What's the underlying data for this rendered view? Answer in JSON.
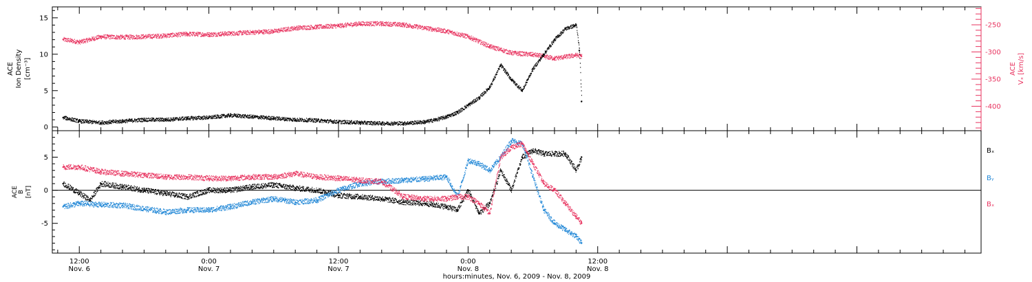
{
  "colors": {
    "axis": "#000000",
    "black": "#000000",
    "pink": "#e8335f",
    "blue": "#1f86d6"
  },
  "x_axis": {
    "title": "hours:minutes, Nov. 6, 2009 - Nov. 8, 2009",
    "range_hours": [
      -2.5,
      83.5
    ],
    "major_ticks": [
      {
        "h": 0,
        "time": "12:00",
        "date": "Nov. 6"
      },
      {
        "h": 12,
        "time": "0:00",
        "date": "Nov. 7"
      },
      {
        "h": 24,
        "time": "12:00",
        "date": "Nov. 7"
      },
      {
        "h": 36,
        "time": "0:00",
        "date": "Nov. 8"
      },
      {
        "h": 48,
        "time": "12:00",
        "date": "Nov. 8"
      }
    ],
    "minor_step_hours": 2
  },
  "panel_top": {
    "left_axis": {
      "label_lines": [
        "ACE",
        "Ion Density",
        "[cm⁻³]"
      ],
      "range": [
        -0.5,
        16.5
      ],
      "ticks": [
        0,
        5,
        10,
        15
      ]
    },
    "right_axis": {
      "label_lines": [
        "ACE",
        "Vₓ [km/s]"
      ],
      "range": [
        -445,
        -217
      ],
      "ticks": [
        -250,
        -300,
        -350,
        -400
      ]
    }
  },
  "panel_bottom": {
    "left_axis": {
      "label_lines": [
        "ACE",
        "B",
        "[nT]"
      ],
      "range": [
        -9.5,
        9
      ],
      "ticks": [
        5,
        0,
        -5
      ]
    },
    "legend": [
      "Bₓ",
      "Bᵧ",
      "Bₓ"
    ],
    "legend_labels": [
      "Bx",
      "By",
      "Bz"
    ]
  },
  "chart_data": [
    {
      "type": "scatter",
      "title": "",
      "xlabel": "hours:minutes, Nov. 6, 2009 - Nov. 8, 2009",
      "ylabel": "ACE Ion Density [cm-3]",
      "y2label": "ACE Vx [km/s]",
      "ylim": [
        -0.5,
        16.5
      ],
      "y2lim": [
        -445,
        -217
      ],
      "series": [
        {
          "name": "Ion Density",
          "axis": "left",
          "color": "#000000",
          "x": [
            -1.5,
            0,
            2,
            4,
            6,
            8,
            10,
            12,
            14,
            16,
            18,
            20,
            22,
            24,
            26,
            28,
            30,
            32,
            33,
            34,
            35,
            36,
            37,
            38,
            39,
            40,
            41,
            42,
            43,
            44,
            45,
            46,
            46.3,
            46.5
          ],
          "y": [
            1.3,
            0.8,
            0.6,
            0.8,
            1.0,
            1.0,
            1.2,
            1.3,
            1.6,
            1.4,
            1.2,
            1.0,
            0.9,
            0.7,
            0.6,
            0.5,
            0.5,
            0.7,
            1.0,
            1.4,
            2.0,
            3.0,
            4.0,
            5.5,
            8.5,
            6.5,
            5.0,
            8.0,
            10.0,
            12.0,
            13.5,
            14.0,
            10.5,
            3.5
          ]
        },
        {
          "name": "Vx",
          "axis": "right",
          "color": "#e8335f",
          "x": [
            -1.5,
            0,
            2,
            4,
            6,
            8,
            10,
            12,
            14,
            16,
            18,
            20,
            22,
            24,
            26,
            28,
            30,
            32,
            34,
            36,
            38,
            40,
            42,
            44,
            46,
            46.5
          ],
          "y": [
            -277,
            -282,
            -272,
            -273,
            -272,
            -270,
            -267,
            -268,
            -266,
            -264,
            -262,
            -256,
            -254,
            -252,
            -248,
            -248,
            -250,
            -256,
            -262,
            -272,
            -290,
            -302,
            -305,
            -312,
            -306,
            -308
          ]
        }
      ]
    },
    {
      "type": "scatter",
      "title": "",
      "xlabel": "hours:minutes, Nov. 6, 2009 - Nov. 8, 2009",
      "ylabel": "ACE B [nT]",
      "ylim": [
        -9.5,
        9
      ],
      "series": [
        {
          "name": "Bx",
          "color": "#000000",
          "x": [
            -1.5,
            0,
            1,
            2,
            4,
            6,
            8,
            10,
            12,
            14,
            16,
            18,
            20,
            22,
            24,
            26,
            28,
            30,
            32,
            34,
            35,
            36,
            37,
            38,
            39,
            40,
            41,
            42,
            43,
            44,
            45,
            46,
            46.5
          ],
          "y": [
            1.0,
            -0.5,
            -1.5,
            1.0,
            0.5,
            0.0,
            -0.5,
            -1.0,
            0.0,
            0.0,
            0.5,
            0.8,
            0.3,
            0.0,
            -0.8,
            -1.0,
            -1.3,
            -1.8,
            -2.0,
            -2.5,
            -3.0,
            0.0,
            -3.5,
            -2.0,
            3.0,
            0.0,
            5.0,
            6.0,
            5.5,
            5.5,
            5.5,
            3.0,
            5.0
          ]
        },
        {
          "name": "By",
          "color": "#1f86d6",
          "x": [
            -1.5,
            0,
            2,
            4,
            6,
            8,
            10,
            12,
            14,
            16,
            18,
            20,
            22,
            24,
            26,
            28,
            30,
            32,
            34,
            35,
            36,
            37,
            38,
            39,
            40,
            41,
            42,
            43,
            44,
            45,
            46,
            46.5
          ],
          "y": [
            -2.5,
            -2.0,
            -2.2,
            -2.3,
            -2.8,
            -3.3,
            -3.0,
            -3.0,
            -2.5,
            -1.8,
            -1.3,
            -1.8,
            -1.5,
            0.0,
            1.0,
            1.3,
            1.5,
            1.7,
            2.0,
            -1.0,
            4.5,
            4.0,
            3.0,
            5.0,
            7.5,
            7.0,
            2.0,
            -3.0,
            -5.0,
            -6.0,
            -7.0,
            -8.0
          ]
        },
        {
          "name": "Bz",
          "color": "#e8335f",
          "x": [
            -1.5,
            0,
            2,
            4,
            6,
            8,
            10,
            12,
            14,
            16,
            18,
            20,
            22,
            24,
            26,
            28,
            30,
            32,
            34,
            35,
            36,
            37,
            38,
            39,
            40,
            41,
            42,
            43,
            44,
            45,
            46,
            46.5
          ],
          "y": [
            3.5,
            3.5,
            2.8,
            2.5,
            2.3,
            2.0,
            2.0,
            1.8,
            1.8,
            2.0,
            2.0,
            2.5,
            2.0,
            1.8,
            1.5,
            1.3,
            -1.0,
            -1.3,
            -1.3,
            -1.0,
            -1.0,
            -2.0,
            -3.5,
            5.0,
            6.5,
            7.0,
            4.0,
            1.0,
            0.0,
            -2.0,
            -4.0,
            -5.0
          ]
        }
      ]
    }
  ]
}
